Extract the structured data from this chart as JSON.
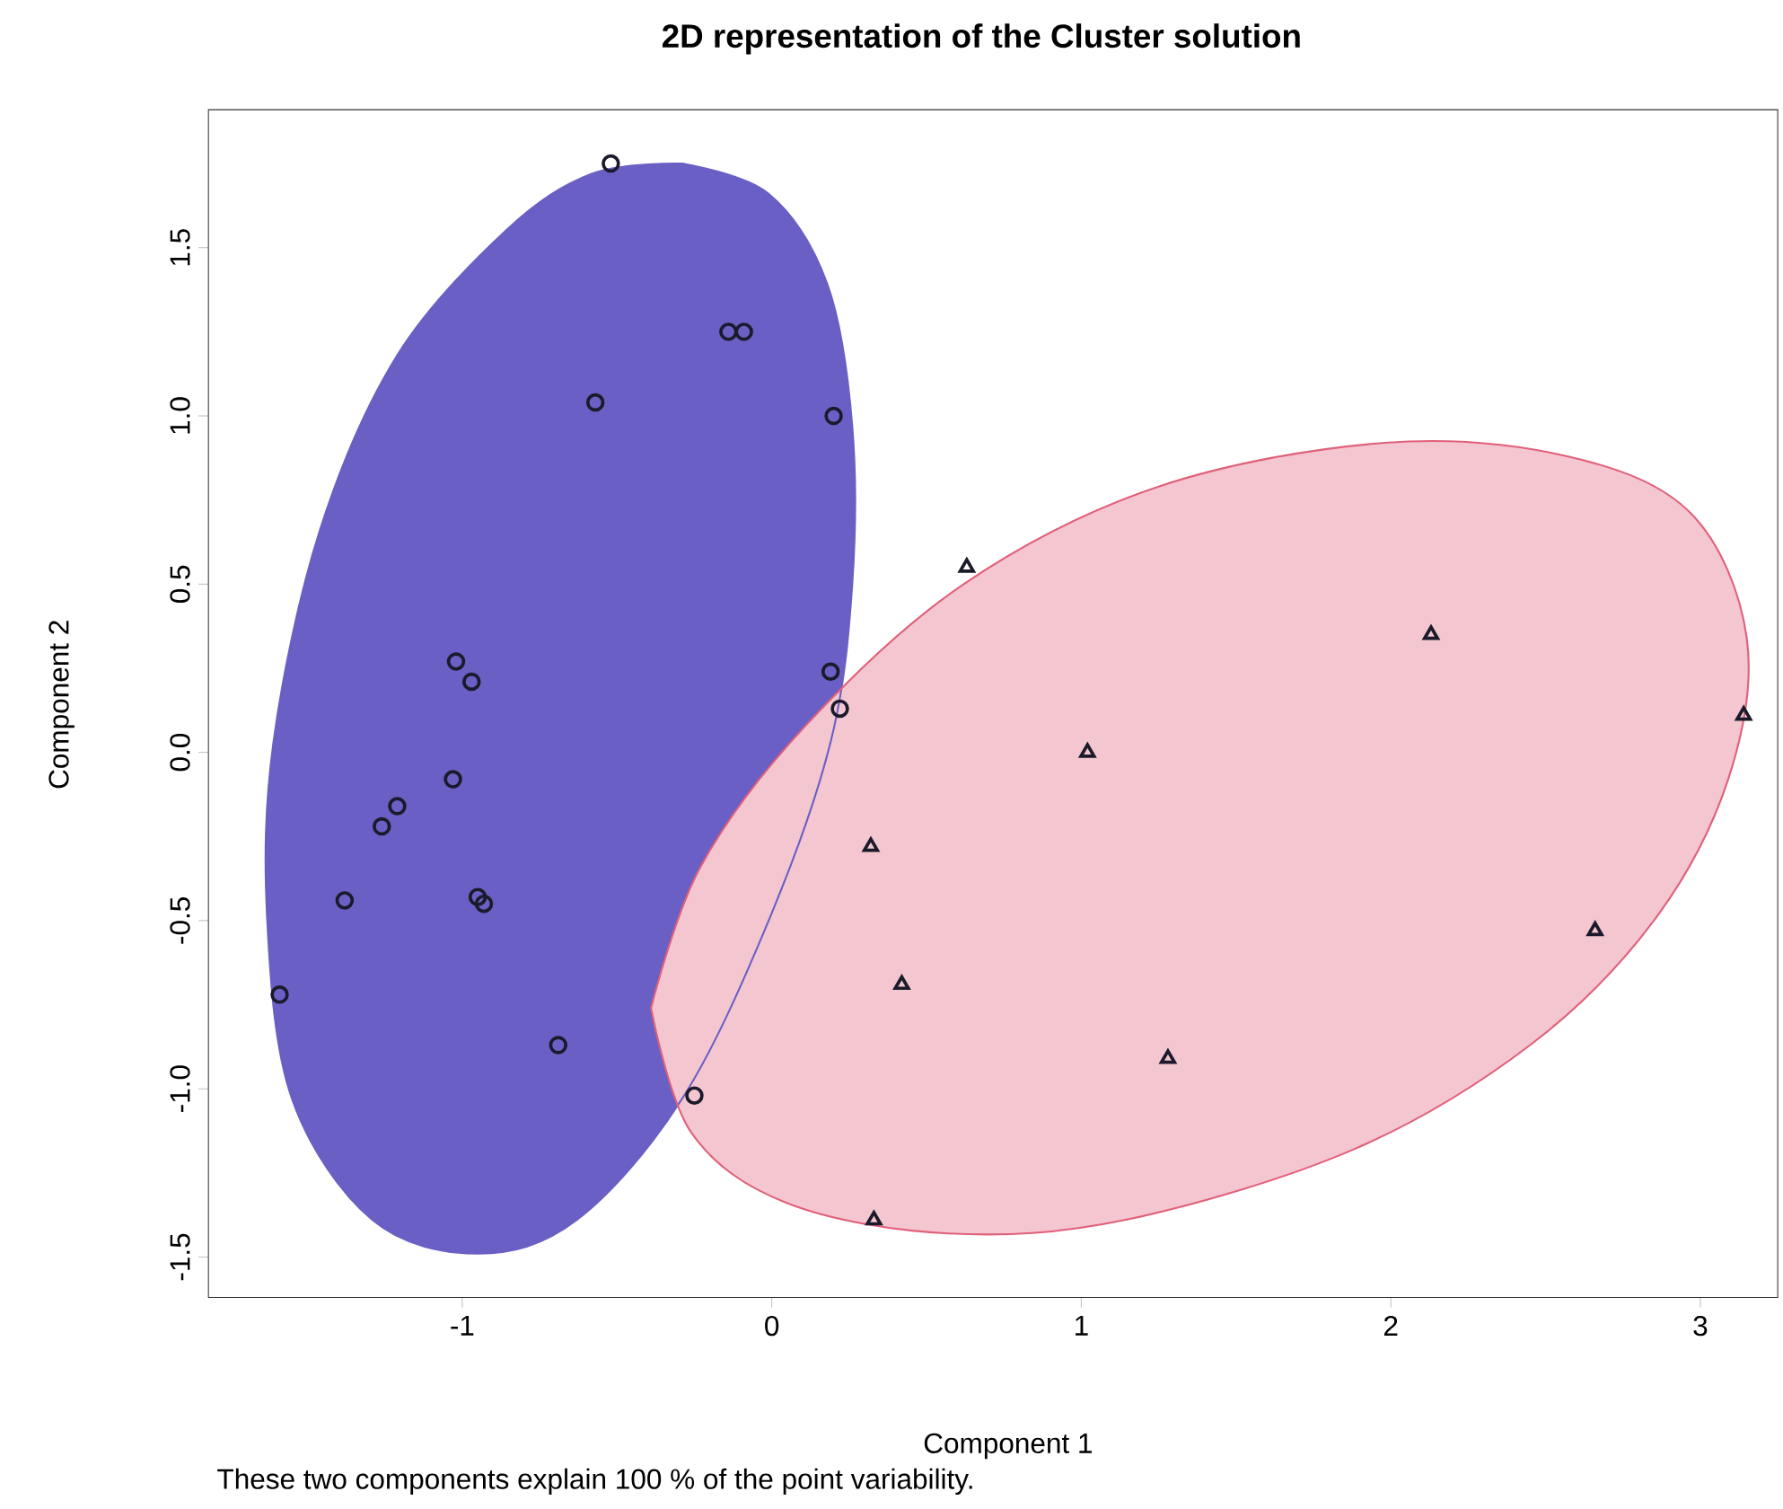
{
  "chart_data": {
    "type": "scatter",
    "title": "2D representation of the Cluster solution",
    "xlabel": "Component 1",
    "ylabel": "Component 2",
    "annotations": [
      "These two components explain 100 % of the point variability."
    ],
    "xlim": [
      -1.82,
      3.25
    ],
    "ylim": [
      -1.62,
      1.91
    ],
    "xticks": [
      -1,
      0,
      1,
      2,
      3
    ],
    "yticks": [
      {
        "value": -1.5,
        "label": "-1.5"
      },
      {
        "value": -1.0,
        "label": "-1.0"
      },
      {
        "value": -0.5,
        "label": "-0.5"
      },
      {
        "value": 0.0,
        "label": "0.0"
      },
      {
        "value": 0.5,
        "label": "0.5"
      },
      {
        "value": 1.0,
        "label": "1.0"
      },
      {
        "value": 1.5,
        "label": "1.5"
      }
    ],
    "series": [
      {
        "type": "area",
        "color": "#6a5fc4",
        "x": [
          -0.29,
          -0.01,
          0.18,
          0.26,
          0.26,
          0.19,
          -0.01,
          -0.29,
          -0.63,
          -0.95,
          -1.29,
          -1.55,
          -1.63,
          -1.61,
          -1.46,
          -1.21,
          -0.86,
          -0.58,
          -0.29
        ],
        "values": [
          1.75,
          1.66,
          1.39,
          0.97,
          0.5,
          0.03,
          -0.5,
          -1.03,
          -1.39,
          -1.49,
          -1.39,
          -1.03,
          -0.5,
          0.03,
          0.66,
          1.18,
          1.55,
          1.72,
          1.75
        ]
      },
      {
        "type": "area",
        "color": "#e0607a",
        "x": [
          -0.39,
          -0.23,
          0.11,
          0.62,
          1.25,
          1.98,
          2.57,
          2.97,
          3.15,
          3.09,
          2.85,
          2.45,
          1.88,
          1.14,
          0.57,
          0.05,
          -0.26,
          -0.39
        ],
        "values": [
          -0.76,
          -0.34,
          0.08,
          0.5,
          0.79,
          0.92,
          0.88,
          0.71,
          0.34,
          -0.08,
          -0.5,
          -0.87,
          -1.18,
          -1.39,
          -1.43,
          -1.34,
          -1.13,
          -0.76
        ]
      },
      {
        "marker": "circle",
        "color": "#1a1a2a",
        "x": [
          -0.52,
          -0.14,
          -0.09,
          -0.57,
          0.2,
          -1.02,
          -0.97,
          0.19,
          0.22,
          -1.03,
          -1.21,
          -1.26,
          -1.38,
          -0.95,
          -0.93,
          -1.59,
          -0.69,
          -0.25
        ],
        "values": [
          1.75,
          1.25,
          1.25,
          1.04,
          1.0,
          0.27,
          0.21,
          0.24,
          0.13,
          -0.08,
          -0.16,
          -0.22,
          -0.44,
          -0.43,
          -0.45,
          -0.72,
          -0.87,
          -1.02
        ]
      },
      {
        "marker": "triangle",
        "color": "#1a1a2a",
        "x": [
          0.63,
          2.13,
          3.14,
          1.02,
          0.32,
          0.42,
          2.66,
          1.28,
          0.33
        ],
        "values": [
          0.55,
          0.35,
          0.11,
          0.0,
          -0.28,
          -0.69,
          -0.53,
          -0.91,
          -1.39
        ]
      }
    ]
  }
}
